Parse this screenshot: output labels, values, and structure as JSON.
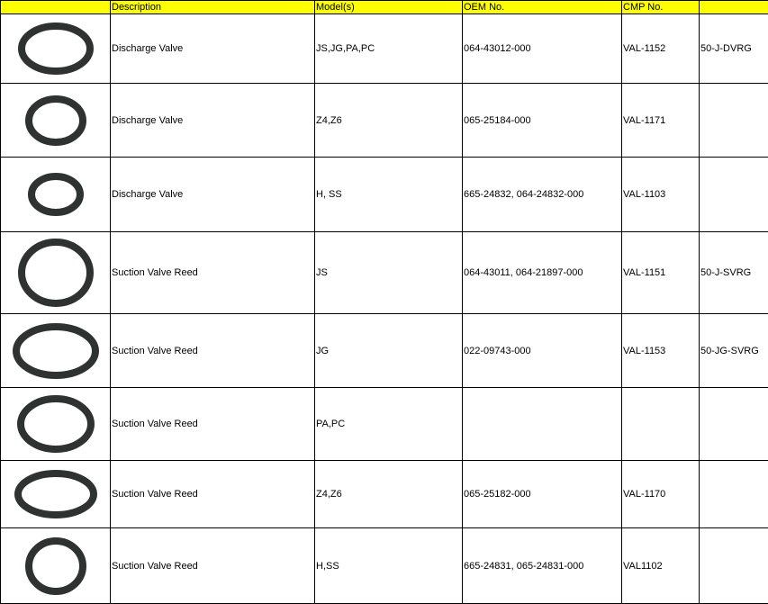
{
  "header": [
    "",
    "Description",
    "Model(s)",
    "OEM No.",
    "CMP No.",
    ""
  ],
  "colors": {
    "header_bg": "#ffff00",
    "ring": "#2e3230"
  },
  "rows": [
    {
      "image": "valve-ring",
      "description": "Discharge Valve",
      "models": "JS,JG,PA,PC",
      "oem": "064-43012-000",
      "cmp": "VAL-1152",
      "part": "50-J-DVRG"
    },
    {
      "image": "valve-ring",
      "description": "Discharge Valve",
      "models": "Z4,Z6",
      "oem": "065-25184-000",
      "cmp": "VAL-1171",
      "part": ""
    },
    {
      "image": "valve-ring",
      "description": "Discharge Valve",
      "models": "H, SS",
      "oem": "665-24832, 064-24832-000",
      "cmp": "VAL-1103",
      "part": ""
    },
    {
      "image": "valve-ring",
      "description": "Suction Valve Reed",
      "models": "JS",
      "oem": "064-43011, 064-21897-000",
      "cmp": "VAL-1151",
      "part": "50-J-SVRG"
    },
    {
      "image": "valve-ring",
      "description": "Suction Valve Reed",
      "models": "JG",
      "oem": "022-09743-000",
      "cmp": "VAL-1153",
      "part": "50-JG-SVRG"
    },
    {
      "image": "valve-ring",
      "description": "Suction Valve Reed",
      "models": "PA,PC",
      "oem": "",
      "cmp": "",
      "part": ""
    },
    {
      "image": "valve-ring",
      "description": "Suction Valve Reed",
      "models": "Z4,Z6",
      "oem": "065-25182-000",
      "cmp": "VAL-1170",
      "part": ""
    },
    {
      "image": "valve-ring",
      "description": "Suction Valve Reed",
      "models": "H,SS",
      "oem": "665-24831, 065-24831-000",
      "cmp": "VAL1102",
      "part": ""
    }
  ]
}
